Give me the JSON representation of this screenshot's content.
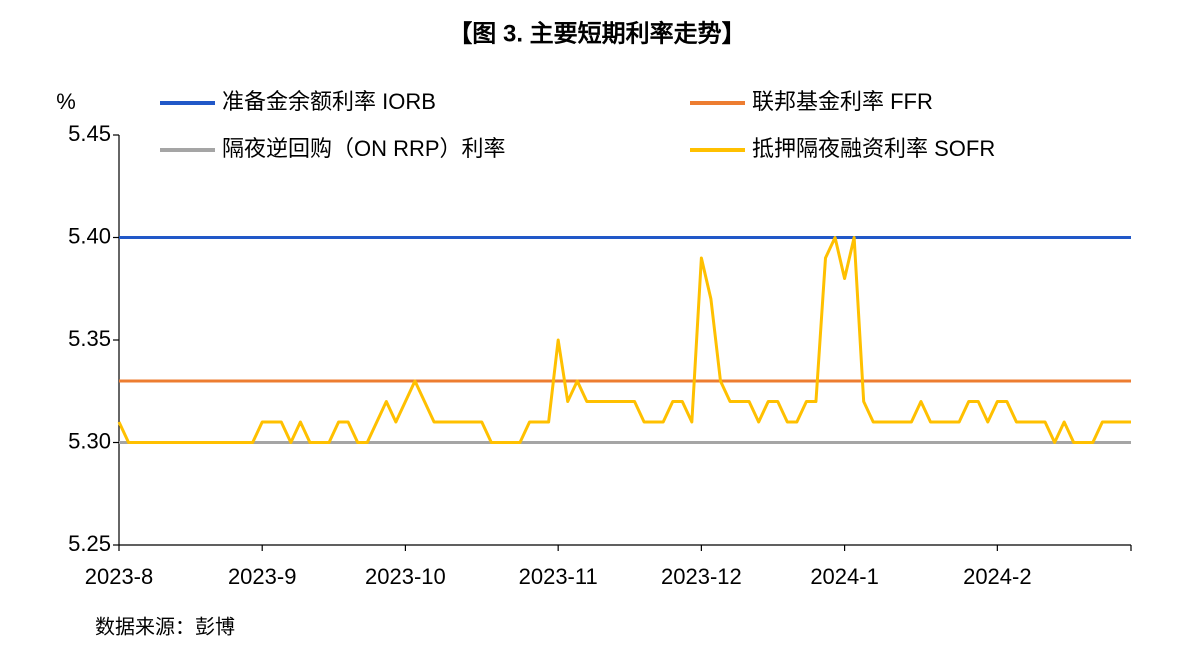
{
  "chart_data": {
    "type": "line",
    "title": "【图 3. 主要短期利率走势】",
    "ylabel": "%",
    "source": "数据来源：彭博",
    "legend": "top",
    "grid": false,
    "categories": [
      "2023-8",
      null,
      null,
      null,
      null,
      null,
      null,
      null,
      null,
      null,
      null,
      null,
      null,
      null,
      null,
      "2023-9",
      null,
      null,
      null,
      null,
      null,
      null,
      null,
      null,
      null,
      null,
      null,
      null,
      null,
      null,
      "2023-10",
      null,
      null,
      null,
      null,
      null,
      null,
      null,
      null,
      null,
      null,
      null,
      null,
      null,
      null,
      null,
      "2023-11",
      null,
      null,
      null,
      null,
      null,
      null,
      null,
      null,
      null,
      null,
      null,
      null,
      null,
      null,
      "2023-12",
      null,
      null,
      null,
      null,
      null,
      null,
      null,
      null,
      null,
      null,
      null,
      null,
      null,
      null,
      "2024-1",
      null,
      null,
      null,
      null,
      null,
      null,
      null,
      null,
      null,
      null,
      null,
      null,
      null,
      null,
      null,
      "2024-2",
      null,
      null,
      null,
      null,
      null,
      null,
      null,
      null,
      null,
      null,
      null,
      null,
      null,
      null
    ],
    "ylim": [
      5.25,
      5.45
    ],
    "yticks": [
      5.25,
      {
        "value": 5.3,
        "label": "5.30"
      },
      5.35,
      {
        "value": 5.4,
        "label": "5.40"
      },
      5.45
    ],
    "series": [
      {
        "name": "准备金余额利率 IORB",
        "color": "#2158c8",
        "values": [
          5.4,
          5.4,
          5.4,
          5.4,
          5.4,
          5.4,
          5.4,
          5.4,
          5.4,
          5.4,
          5.4,
          5.4,
          5.4,
          5.4,
          5.4,
          5.4,
          5.4,
          5.4,
          5.4,
          5.4,
          5.4,
          5.4,
          5.4,
          5.4,
          5.4,
          5.4,
          5.4,
          5.4,
          5.4,
          5.4,
          5.4,
          5.4,
          5.4,
          5.4,
          5.4,
          5.4,
          5.4,
          5.4,
          5.4,
          5.4,
          5.4,
          5.4,
          5.4,
          5.4,
          5.4,
          5.4,
          5.4,
          5.4,
          5.4,
          5.4,
          5.4,
          5.4,
          5.4,
          5.4,
          5.4,
          5.4,
          5.4,
          5.4,
          5.4,
          5.4,
          5.4,
          5.4,
          5.4,
          5.4,
          5.4,
          5.4,
          5.4,
          5.4,
          5.4,
          5.4,
          5.4,
          5.4,
          5.4,
          5.4,
          5.4,
          5.4,
          5.4,
          5.4,
          5.4,
          5.4,
          5.4,
          5.4,
          5.4,
          5.4,
          5.4,
          5.4,
          5.4,
          5.4,
          5.4,
          5.4,
          5.4,
          5.4,
          5.4,
          5.4,
          5.4,
          5.4,
          5.4,
          5.4,
          5.4,
          5.4,
          5.4,
          5.4,
          5.4,
          5.4,
          5.4,
          5.4,
          5.4
        ]
      },
      {
        "name": "联邦基金利率 FFR",
        "color": "#ed7d31",
        "values": [
          5.33,
          5.33,
          5.33,
          5.33,
          5.33,
          5.33,
          5.33,
          5.33,
          5.33,
          5.33,
          5.33,
          5.33,
          5.33,
          5.33,
          5.33,
          5.33,
          5.33,
          5.33,
          5.33,
          5.33,
          5.33,
          5.33,
          5.33,
          5.33,
          5.33,
          5.33,
          5.33,
          5.33,
          5.33,
          5.33,
          5.33,
          5.33,
          5.33,
          5.33,
          5.33,
          5.33,
          5.33,
          5.33,
          5.33,
          5.33,
          5.33,
          5.33,
          5.33,
          5.33,
          5.33,
          5.33,
          5.33,
          5.33,
          5.33,
          5.33,
          5.33,
          5.33,
          5.33,
          5.33,
          5.33,
          5.33,
          5.33,
          5.33,
          5.33,
          5.33,
          5.33,
          5.33,
          5.33,
          5.33,
          5.33,
          5.33,
          5.33,
          5.33,
          5.33,
          5.33,
          5.33,
          5.33,
          5.33,
          5.33,
          5.33,
          5.33,
          5.33,
          5.33,
          5.33,
          5.33,
          5.33,
          5.33,
          5.33,
          5.33,
          5.33,
          5.33,
          5.33,
          5.33,
          5.33,
          5.33,
          5.33,
          5.33,
          5.33,
          5.33,
          5.33,
          5.33,
          5.33,
          5.33,
          5.33,
          5.33,
          5.33,
          5.33,
          5.33,
          5.33,
          5.33,
          5.33,
          5.33
        ]
      },
      {
        "name": "隔夜逆回购（ON RRP）利率",
        "color": "#a5a5a5",
        "values": [
          5.3,
          5.3,
          5.3,
          5.3,
          5.3,
          5.3,
          5.3,
          5.3,
          5.3,
          5.3,
          5.3,
          5.3,
          5.3,
          5.3,
          5.3,
          5.3,
          5.3,
          5.3,
          5.3,
          5.3,
          5.3,
          5.3,
          5.3,
          5.3,
          5.3,
          5.3,
          5.3,
          5.3,
          5.3,
          5.3,
          5.3,
          5.3,
          5.3,
          5.3,
          5.3,
          5.3,
          5.3,
          5.3,
          5.3,
          5.3,
          5.3,
          5.3,
          5.3,
          5.3,
          5.3,
          5.3,
          5.3,
          5.3,
          5.3,
          5.3,
          5.3,
          5.3,
          5.3,
          5.3,
          5.3,
          5.3,
          5.3,
          5.3,
          5.3,
          5.3,
          5.3,
          5.3,
          5.3,
          5.3,
          5.3,
          5.3,
          5.3,
          5.3,
          5.3,
          5.3,
          5.3,
          5.3,
          5.3,
          5.3,
          5.3,
          5.3,
          5.3,
          5.3,
          5.3,
          5.3,
          5.3,
          5.3,
          5.3,
          5.3,
          5.3,
          5.3,
          5.3,
          5.3,
          5.3,
          5.3,
          5.3,
          5.3,
          5.3,
          5.3,
          5.3,
          5.3,
          5.3,
          5.3,
          5.3,
          5.3,
          5.3,
          5.3,
          5.3,
          5.3,
          5.3,
          5.3,
          5.3
        ]
      },
      {
        "name": "抵押隔夜融资利率 SOFR",
        "color": "#ffc000",
        "values": [
          5.31,
          5.3,
          5.3,
          5.3,
          5.3,
          5.3,
          5.3,
          5.3,
          5.3,
          5.3,
          5.3,
          5.3,
          5.3,
          5.3,
          5.3,
          5.31,
          5.31,
          5.31,
          5.3,
          5.31,
          5.3,
          5.3,
          5.3,
          5.31,
          5.31,
          5.3,
          5.3,
          5.31,
          5.32,
          5.31,
          5.32,
          5.33,
          5.32,
          5.31,
          5.31,
          5.31,
          5.31,
          5.31,
          5.31,
          5.3,
          5.3,
          5.3,
          5.3,
          5.31,
          5.31,
          5.31,
          5.35,
          5.32,
          5.33,
          5.32,
          5.32,
          5.32,
          5.32,
          5.32,
          5.32,
          5.31,
          5.31,
          5.31,
          5.32,
          5.32,
          5.31,
          5.39,
          5.37,
          5.33,
          5.32,
          5.32,
          5.32,
          5.31,
          5.32,
          5.32,
          5.31,
          5.31,
          5.32,
          5.32,
          5.39,
          5.4,
          5.38,
          5.4,
          5.32,
          5.31,
          5.31,
          5.31,
          5.31,
          5.31,
          5.32,
          5.31,
          5.31,
          5.31,
          5.31,
          5.32,
          5.32,
          5.31,
          5.32,
          5.32,
          5.31,
          5.31,
          5.31,
          5.31,
          5.3,
          5.31,
          5.3,
          5.3,
          5.3,
          5.31,
          5.31,
          5.31,
          5.31
        ]
      }
    ]
  }
}
